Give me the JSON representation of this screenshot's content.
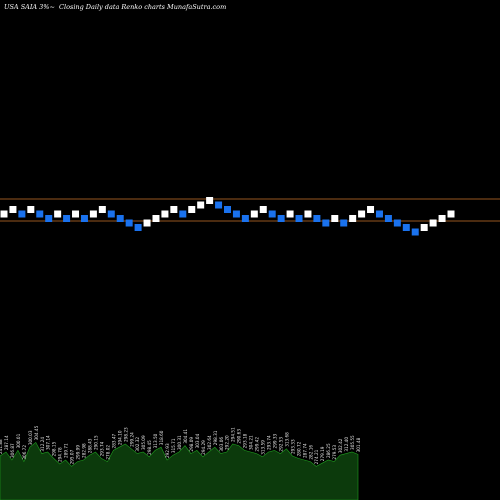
{
  "header": {
    "ticker": "USA SAIA 3%~",
    "subtitle": "Closing Daily data  Renko  charts MunafaSutra.com"
  },
  "colors": {
    "background": "#000000",
    "up_brick": "#ffffff",
    "down_brick": "#1a72ee",
    "reference_line": "#c9732a",
    "volume_fill": "#0c3a0c",
    "volume_stroke": "#1f9e1f"
  },
  "chart_data": {
    "type": "renko",
    "brick_directions": [
      "U",
      "U",
      "D",
      "U",
      "D",
      "D",
      "U",
      "D",
      "U",
      "D",
      "U",
      "U",
      "D",
      "D",
      "D",
      "D",
      "U",
      "U",
      "U",
      "U",
      "D",
      "U",
      "U",
      "U",
      "D",
      "D",
      "D",
      "D",
      "U",
      "U",
      "D",
      "D",
      "U",
      "D",
      "U",
      "D",
      "D",
      "U",
      "D",
      "U",
      "U",
      "U",
      "D",
      "D",
      "D",
      "D",
      "D",
      "U",
      "U",
      "U",
      "U"
    ],
    "reference_levels": [
      "upper",
      "lower"
    ],
    "volume_labels": [
      "241.88",
      "287.14",
      "306.87",
      "300.01",
      "306.72",
      "300.03",
      "304.45",
      "312.24",
      "307.14",
      "298.15",
      "294.78",
      "289.71",
      "295.07",
      "299.99",
      "282.98",
      "288.43",
      "290.15",
      "293.74",
      "278.02",
      "283.47",
      "294.10",
      "298.23",
      "299.24",
      "302.32",
      "305.09",
      "298.45",
      "313.50",
      "318.60",
      "292.93",
      "315.71",
      "300.31",
      "304.41",
      "298.09",
      "303.04",
      "294.29",
      "302.64",
      "298.31",
      "303.06",
      "292.20",
      "294.51",
      "290.63",
      "293.18",
      "304.21",
      "299.42",
      "313.59",
      "293.74",
      "299.33",
      "292.53",
      "313.68",
      "293.33",
      "280.72",
      "287.74",
      "282.16",
      "274.21",
      "279.19",
      "286.25",
      "279.53",
      "302.42",
      "312.40",
      "305.55",
      "301.48"
    ],
    "volume_levels": [
      0.55,
      0.6,
      0.5,
      0.62,
      0.48,
      0.66,
      0.72,
      0.58,
      0.6,
      0.52,
      0.45,
      0.5,
      0.42,
      0.48,
      0.5,
      0.56,
      0.6,
      0.52,
      0.48,
      0.62,
      0.66,
      0.7,
      0.64,
      0.58,
      0.6,
      0.54,
      0.62,
      0.66,
      0.5,
      0.56,
      0.6,
      0.68,
      0.58,
      0.62,
      0.54,
      0.6,
      0.66,
      0.58,
      0.6,
      0.7,
      0.68,
      0.62,
      0.6,
      0.58,
      0.54,
      0.6,
      0.62,
      0.58,
      0.64,
      0.55,
      0.52,
      0.5,
      0.48,
      0.42,
      0.46,
      0.5,
      0.48,
      0.56,
      0.58,
      0.6,
      0.57
    ]
  }
}
